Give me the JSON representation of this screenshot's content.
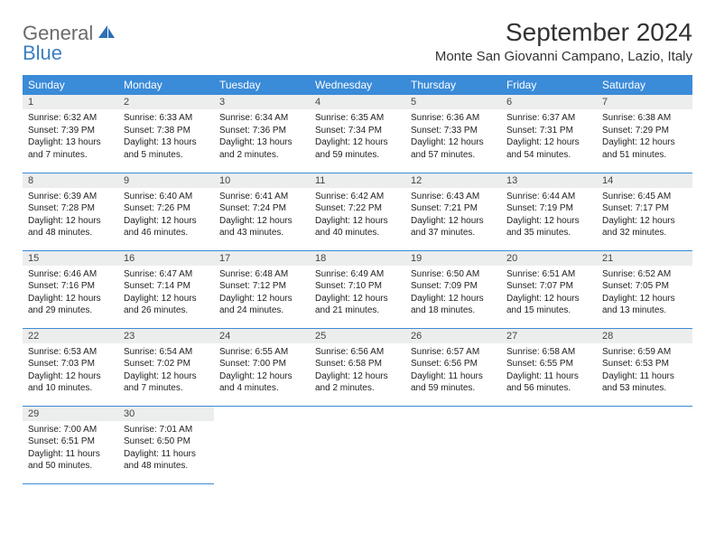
{
  "brand": {
    "part1": "General",
    "part2": "Blue"
  },
  "title": "September 2024",
  "location": "Monte San Giovanni Campano, Lazio, Italy",
  "colors": {
    "header_bg": "#3a8bd8",
    "header_text": "#ffffff",
    "row_border": "#3a8bd8",
    "daynum_bg": "#eceded",
    "logo_gray": "#6b6b6b",
    "logo_blue": "#3a7fc4"
  },
  "weekdays": [
    "Sunday",
    "Monday",
    "Tuesday",
    "Wednesday",
    "Thursday",
    "Friday",
    "Saturday"
  ],
  "weeks": [
    [
      {
        "num": "1",
        "sunrise": "Sunrise: 6:32 AM",
        "sunset": "Sunset: 7:39 PM",
        "daylight": "Daylight: 13 hours and 7 minutes."
      },
      {
        "num": "2",
        "sunrise": "Sunrise: 6:33 AM",
        "sunset": "Sunset: 7:38 PM",
        "daylight": "Daylight: 13 hours and 5 minutes."
      },
      {
        "num": "3",
        "sunrise": "Sunrise: 6:34 AM",
        "sunset": "Sunset: 7:36 PM",
        "daylight": "Daylight: 13 hours and 2 minutes."
      },
      {
        "num": "4",
        "sunrise": "Sunrise: 6:35 AM",
        "sunset": "Sunset: 7:34 PM",
        "daylight": "Daylight: 12 hours and 59 minutes."
      },
      {
        "num": "5",
        "sunrise": "Sunrise: 6:36 AM",
        "sunset": "Sunset: 7:33 PM",
        "daylight": "Daylight: 12 hours and 57 minutes."
      },
      {
        "num": "6",
        "sunrise": "Sunrise: 6:37 AM",
        "sunset": "Sunset: 7:31 PM",
        "daylight": "Daylight: 12 hours and 54 minutes."
      },
      {
        "num": "7",
        "sunrise": "Sunrise: 6:38 AM",
        "sunset": "Sunset: 7:29 PM",
        "daylight": "Daylight: 12 hours and 51 minutes."
      }
    ],
    [
      {
        "num": "8",
        "sunrise": "Sunrise: 6:39 AM",
        "sunset": "Sunset: 7:28 PM",
        "daylight": "Daylight: 12 hours and 48 minutes."
      },
      {
        "num": "9",
        "sunrise": "Sunrise: 6:40 AM",
        "sunset": "Sunset: 7:26 PM",
        "daylight": "Daylight: 12 hours and 46 minutes."
      },
      {
        "num": "10",
        "sunrise": "Sunrise: 6:41 AM",
        "sunset": "Sunset: 7:24 PM",
        "daylight": "Daylight: 12 hours and 43 minutes."
      },
      {
        "num": "11",
        "sunrise": "Sunrise: 6:42 AM",
        "sunset": "Sunset: 7:22 PM",
        "daylight": "Daylight: 12 hours and 40 minutes."
      },
      {
        "num": "12",
        "sunrise": "Sunrise: 6:43 AM",
        "sunset": "Sunset: 7:21 PM",
        "daylight": "Daylight: 12 hours and 37 minutes."
      },
      {
        "num": "13",
        "sunrise": "Sunrise: 6:44 AM",
        "sunset": "Sunset: 7:19 PM",
        "daylight": "Daylight: 12 hours and 35 minutes."
      },
      {
        "num": "14",
        "sunrise": "Sunrise: 6:45 AM",
        "sunset": "Sunset: 7:17 PM",
        "daylight": "Daylight: 12 hours and 32 minutes."
      }
    ],
    [
      {
        "num": "15",
        "sunrise": "Sunrise: 6:46 AM",
        "sunset": "Sunset: 7:16 PM",
        "daylight": "Daylight: 12 hours and 29 minutes."
      },
      {
        "num": "16",
        "sunrise": "Sunrise: 6:47 AM",
        "sunset": "Sunset: 7:14 PM",
        "daylight": "Daylight: 12 hours and 26 minutes."
      },
      {
        "num": "17",
        "sunrise": "Sunrise: 6:48 AM",
        "sunset": "Sunset: 7:12 PM",
        "daylight": "Daylight: 12 hours and 24 minutes."
      },
      {
        "num": "18",
        "sunrise": "Sunrise: 6:49 AM",
        "sunset": "Sunset: 7:10 PM",
        "daylight": "Daylight: 12 hours and 21 minutes."
      },
      {
        "num": "19",
        "sunrise": "Sunrise: 6:50 AM",
        "sunset": "Sunset: 7:09 PM",
        "daylight": "Daylight: 12 hours and 18 minutes."
      },
      {
        "num": "20",
        "sunrise": "Sunrise: 6:51 AM",
        "sunset": "Sunset: 7:07 PM",
        "daylight": "Daylight: 12 hours and 15 minutes."
      },
      {
        "num": "21",
        "sunrise": "Sunrise: 6:52 AM",
        "sunset": "Sunset: 7:05 PM",
        "daylight": "Daylight: 12 hours and 13 minutes."
      }
    ],
    [
      {
        "num": "22",
        "sunrise": "Sunrise: 6:53 AM",
        "sunset": "Sunset: 7:03 PM",
        "daylight": "Daylight: 12 hours and 10 minutes."
      },
      {
        "num": "23",
        "sunrise": "Sunrise: 6:54 AM",
        "sunset": "Sunset: 7:02 PM",
        "daylight": "Daylight: 12 hours and 7 minutes."
      },
      {
        "num": "24",
        "sunrise": "Sunrise: 6:55 AM",
        "sunset": "Sunset: 7:00 PM",
        "daylight": "Daylight: 12 hours and 4 minutes."
      },
      {
        "num": "25",
        "sunrise": "Sunrise: 6:56 AM",
        "sunset": "Sunset: 6:58 PM",
        "daylight": "Daylight: 12 hours and 2 minutes."
      },
      {
        "num": "26",
        "sunrise": "Sunrise: 6:57 AM",
        "sunset": "Sunset: 6:56 PM",
        "daylight": "Daylight: 11 hours and 59 minutes."
      },
      {
        "num": "27",
        "sunrise": "Sunrise: 6:58 AM",
        "sunset": "Sunset: 6:55 PM",
        "daylight": "Daylight: 11 hours and 56 minutes."
      },
      {
        "num": "28",
        "sunrise": "Sunrise: 6:59 AM",
        "sunset": "Sunset: 6:53 PM",
        "daylight": "Daylight: 11 hours and 53 minutes."
      }
    ],
    [
      {
        "num": "29",
        "sunrise": "Sunrise: 7:00 AM",
        "sunset": "Sunset: 6:51 PM",
        "daylight": "Daylight: 11 hours and 50 minutes."
      },
      {
        "num": "30",
        "sunrise": "Sunrise: 7:01 AM",
        "sunset": "Sunset: 6:50 PM",
        "daylight": "Daylight: 11 hours and 48 minutes."
      },
      null,
      null,
      null,
      null,
      null
    ]
  ]
}
